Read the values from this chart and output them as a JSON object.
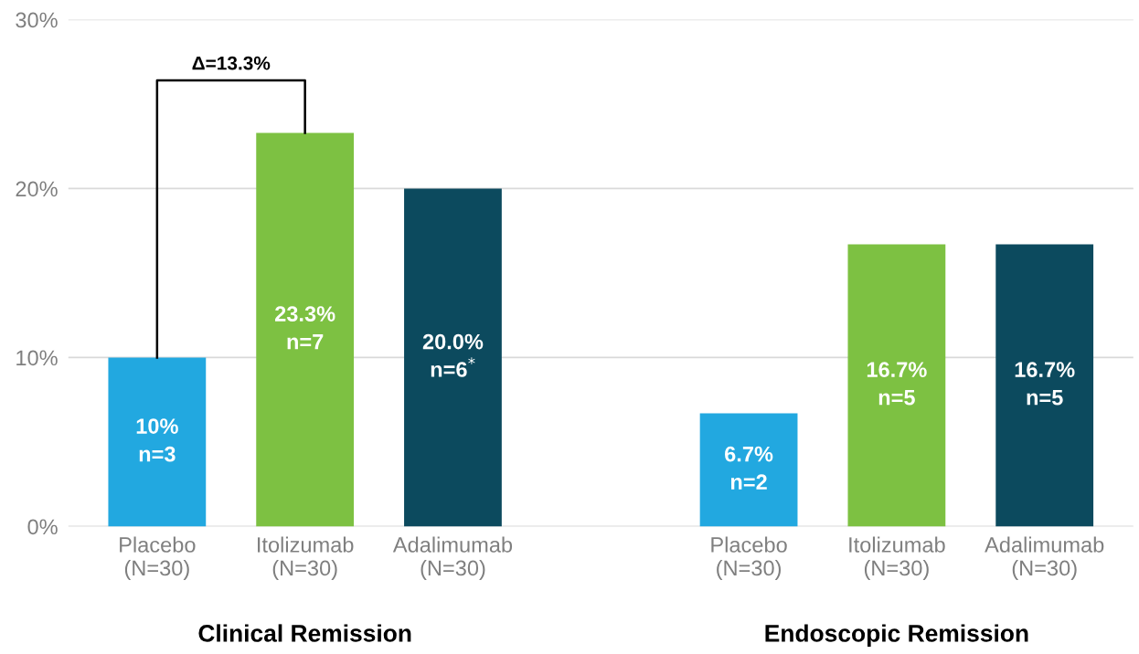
{
  "chart_data": {
    "type": "bar",
    "categories": [
      "Placebo\n(N=30)",
      "Itolizumab\n(N=30)",
      "Adalimumab\n(N=30)",
      null,
      "Placebo\n(N=30)",
      "Itolizumab\n(N=30)",
      "Adalimumab\n(N=30)"
    ],
    "values": [
      10,
      23.3,
      20.0,
      null,
      6.7,
      16.7,
      16.7
    ],
    "colors": [
      "#22a8e0",
      "#7dc142",
      "#0c4a5e",
      "#ffffff",
      "#22a8e0",
      "#7dc142",
      "#0c4a5e"
    ],
    "value_labels": [
      "10%\nn=3",
      "23.3%\nn=7",
      "20.0%\nn=6$^{*}$",
      null,
      "6.7%\nn=2",
      "16.7%\nn=5",
      "16.7%\nn=5"
    ],
    "ylim": [
      0,
      30
    ],
    "yticks": [
      {
        "value": 0,
        "label": "0%"
      },
      {
        "value": 10,
        "label": "10%"
      },
      {
        "value": 20,
        "label": "20%"
      },
      {
        "value": 30,
        "label": "30%"
      }
    ],
    "grid": "y",
    "annotations": [
      "Δ=13.3%",
      "Clinical Remission",
      "Endoscopic Remission"
    ]
  }
}
